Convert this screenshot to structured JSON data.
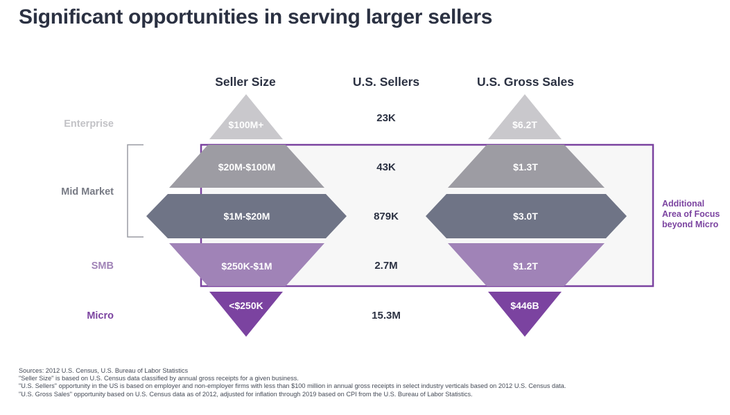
{
  "title": "Significant opportunities in serving larger sellers",
  "columns": {
    "seller_size": "Seller Size",
    "us_sellers": "U.S. Sellers",
    "us_gross_sales": "U.S. Gross Sales"
  },
  "segments": {
    "enterprise": "Enterprise",
    "mid_market": "Mid Market",
    "smb": "SMB",
    "micro": "Micro"
  },
  "rows": [
    {
      "seller_size": "$100M+",
      "us_sellers": "23K",
      "us_gross_sales": "$6.2T"
    },
    {
      "seller_size": "$20M-$100M",
      "us_sellers": "43K",
      "us_gross_sales": "$1.3T"
    },
    {
      "seller_size": "$1M-$20M",
      "us_sellers": "879K",
      "us_gross_sales": "$3.0T"
    },
    {
      "seller_size": "$250K-$1M",
      "us_sellers": "2.7M",
      "us_gross_sales": "$1.2T"
    },
    {
      "seller_size": "<$250K",
      "us_sellers": "15.3M",
      "us_gross_sales": "$446B"
    }
  ],
  "focus_note": [
    "Additional",
    "Area of Focus",
    "beyond Micro"
  ],
  "sources": [
    "Sources: 2012 U.S. Census, U.S. Bureau of Labor Statistics",
    "\"Seller Size\" is based on U.S. Census data classified by annual gross receipts for a given business.",
    "\"U.S. Sellers\" opportunity in the US is based on employer and non-employer firms with less than $100 million in annual gross receipts in select industry verticals based on 2012 U.S. Census data.",
    "\"U.S. Gross Sales\" opportunity based on U.S. Census data as of 2012, adjusted for inflation through 2019 based on CPI from the U.S. Bureau of Labor Statistics."
  ],
  "colors": {
    "title": "#2b3142",
    "enterprise": "#c9c8cc",
    "mid_market_upper": "#9d9ca3",
    "mid_market_lower": "#6f7486",
    "smb": "#a083b7",
    "micro": "#7b43a0",
    "mid_market_label": "#777a84",
    "enterprise_label": "#c2c2c6",
    "focus_box": "#7b43a0",
    "focus_fill": "#f7f7f7",
    "bracket": "#9a9ca4"
  }
}
